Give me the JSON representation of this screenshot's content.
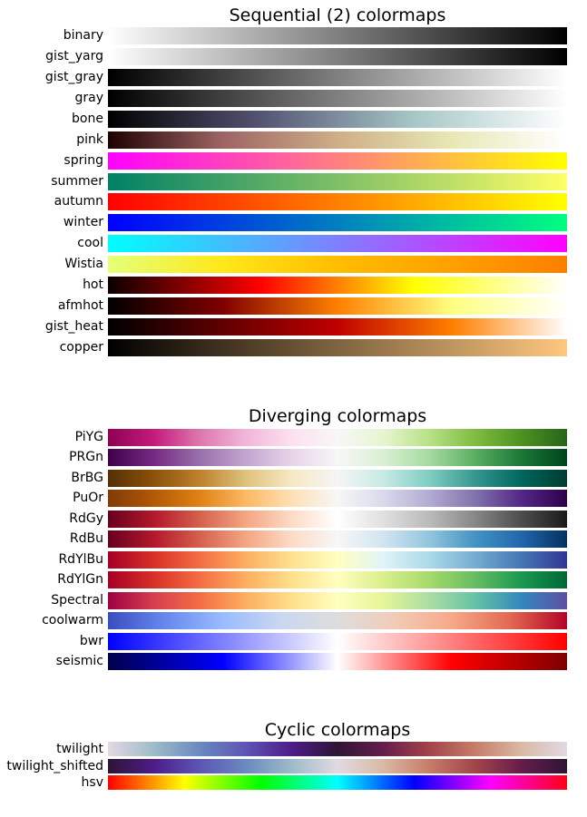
{
  "chart_data": [
    {
      "type": "colormap-reference",
      "title": "Sequential (2) colormaps",
      "colormaps": [
        {
          "name": "binary",
          "stops": [
            "#ffffff",
            "#000000"
          ]
        },
        {
          "name": "gist_yarg",
          "stops": [
            "#ffffff",
            "#000000"
          ]
        },
        {
          "name": "gist_gray",
          "stops": [
            "#000000",
            "#ffffff"
          ]
        },
        {
          "name": "gray",
          "stops": [
            "#000000",
            "#ffffff"
          ]
        },
        {
          "name": "bone",
          "stops": [
            "#000000",
            "#545474",
            "#a7c7c7",
            "#ffffff"
          ]
        },
        {
          "name": "pink",
          "stops": [
            "#1e0000",
            "#9e6464",
            "#cfae88",
            "#e8e8b5",
            "#ffffff"
          ]
        },
        {
          "name": "spring",
          "stops": [
            "#ff00ff",
            "#ffff00"
          ]
        },
        {
          "name": "summer",
          "stops": [
            "#008066",
            "#ffff66"
          ]
        },
        {
          "name": "autumn",
          "stops": [
            "#ff0000",
            "#ffff00"
          ]
        },
        {
          "name": "winter",
          "stops": [
            "#0000ff",
            "#00ff80"
          ]
        },
        {
          "name": "cool",
          "stops": [
            "#00ffff",
            "#ff00ff"
          ]
        },
        {
          "name": "Wistia",
          "stops": [
            "#e4ff7a",
            "#ffe81a",
            "#ffbd00",
            "#ffa000",
            "#fc7f00"
          ]
        },
        {
          "name": "hot",
          "stops": [
            "#0b0000",
            "#ff0000",
            "#ffff00",
            "#ffffff"
          ]
        },
        {
          "name": "afmhot",
          "stops": [
            "#000000",
            "#800000",
            "#ff8000",
            "#ffff80",
            "#ffffff"
          ]
        },
        {
          "name": "gist_heat",
          "stops": [
            "#000000",
            "#600000",
            "#bf0000",
            "#ff7f00",
            "#ffffff"
          ]
        },
        {
          "name": "copper",
          "stops": [
            "#000000",
            "#ffc77f"
          ]
        }
      ]
    },
    {
      "type": "colormap-reference",
      "title": "Diverging colormaps",
      "colormaps": [
        {
          "name": "PiYG",
          "stops": [
            "#8e0152",
            "#c51b7d",
            "#de77ae",
            "#f1b6da",
            "#fde0ef",
            "#f7f7f7",
            "#e6f5d0",
            "#b8e186",
            "#7fbc41",
            "#4d9221",
            "#276419"
          ]
        },
        {
          "name": "PRGn",
          "stops": [
            "#40004b",
            "#762a83",
            "#9970ab",
            "#c2a5cf",
            "#e7d4e8",
            "#f7f7f7",
            "#d9f0d3",
            "#a6dba0",
            "#5aae61",
            "#1b7837",
            "#00441b"
          ]
        },
        {
          "name": "BrBG",
          "stops": [
            "#543005",
            "#8c510a",
            "#bf812d",
            "#dfc27d",
            "#f6e8c3",
            "#f5f5f5",
            "#c7eae5",
            "#80cdc1",
            "#35978f",
            "#01665e",
            "#003c30"
          ]
        },
        {
          "name": "PuOr",
          "stops": [
            "#7f3b08",
            "#b35806",
            "#e08214",
            "#fdb863",
            "#fee0b6",
            "#f7f7f7",
            "#d8daeb",
            "#b2abd2",
            "#8073ac",
            "#542788",
            "#2d004b"
          ]
        },
        {
          "name": "RdGy",
          "stops": [
            "#67001f",
            "#b2182b",
            "#d6604d",
            "#f4a582",
            "#fddbc7",
            "#ffffff",
            "#e0e0e0",
            "#bababa",
            "#878787",
            "#4d4d4d",
            "#1a1a1a"
          ]
        },
        {
          "name": "RdBu",
          "stops": [
            "#67001f",
            "#b2182b",
            "#d6604d",
            "#f4a582",
            "#fddbc7",
            "#f7f7f7",
            "#d1e5f0",
            "#92c5de",
            "#4393c3",
            "#2166ac",
            "#053061"
          ]
        },
        {
          "name": "RdYlBu",
          "stops": [
            "#a50026",
            "#d73027",
            "#f46d43",
            "#fdae61",
            "#fee090",
            "#ffffbf",
            "#e0f3f8",
            "#abd9e9",
            "#74add1",
            "#4575b4",
            "#313695"
          ]
        },
        {
          "name": "RdYlGn",
          "stops": [
            "#a50026",
            "#d73027",
            "#f46d43",
            "#fdae61",
            "#fee08b",
            "#ffffbf",
            "#d9ef8b",
            "#a6d96a",
            "#66bd63",
            "#1a9850",
            "#006837"
          ]
        },
        {
          "name": "Spectral",
          "stops": [
            "#9e0142",
            "#d53e4f",
            "#f46d43",
            "#fdae61",
            "#fee08b",
            "#ffffbf",
            "#e6f598",
            "#abdda4",
            "#66c2a5",
            "#3288bd",
            "#5e4fa2"
          ]
        },
        {
          "name": "coolwarm",
          "stops": [
            "#3b4cc0",
            "#6788ee",
            "#9abbff",
            "#c9d7f0",
            "#dddddd",
            "#f2cbb7",
            "#f7a889",
            "#e26952",
            "#b40426"
          ]
        },
        {
          "name": "bwr",
          "stops": [
            "#0000ff",
            "#ffffff",
            "#ff0000"
          ]
        },
        {
          "name": "seismic",
          "stops": [
            "#00004c",
            "#0000ff",
            "#ffffff",
            "#ff0000",
            "#7f0000"
          ]
        }
      ]
    },
    {
      "type": "colormap-reference",
      "title": "Cyclic colormaps",
      "colormaps": [
        {
          "name": "twilight",
          "stops": [
            "#e2d9e2",
            "#9ebbc9",
            "#6a89c0",
            "#5d55b4",
            "#4d1c88",
            "#2f1436",
            "#661d4c",
            "#a3434a",
            "#c67d68",
            "#d9b9a5",
            "#e2d9e2"
          ]
        },
        {
          "name": "twilight_shifted",
          "stops": [
            "#2f1436",
            "#4d1c88",
            "#5d55b4",
            "#6a89c0",
            "#9ebbc9",
            "#e2d9e2",
            "#d9b9a5",
            "#c67d68",
            "#a3434a",
            "#661d4c",
            "#2f1436"
          ]
        },
        {
          "name": "hsv",
          "stops": [
            "#ff0000",
            "#ffff00",
            "#00ff00",
            "#00ffff",
            "#0000ff",
            "#ff00ff",
            "#ff0018"
          ]
        }
      ]
    }
  ]
}
